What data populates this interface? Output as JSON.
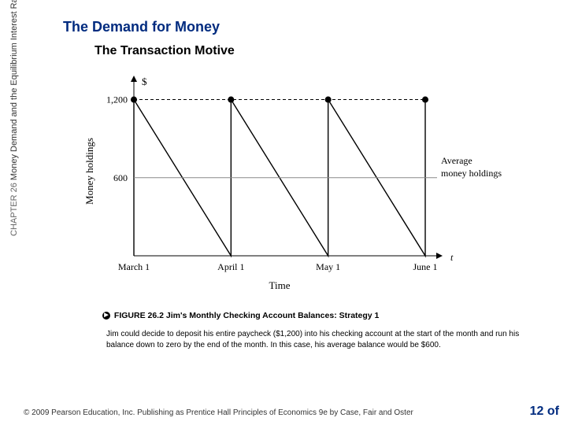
{
  "header": {
    "title": "The Demand for Money",
    "subtitle": "The Transaction Motive"
  },
  "sidebar": {
    "chapter_label": "CHAPTER 26",
    "chapter_title": "Money Demand and the Equilibrium Interest Rate"
  },
  "chart": {
    "type": "line",
    "y_axis_symbol": "$",
    "y_label": "Money holdings",
    "x_label": "Time",
    "x_symbol": "t",
    "y_ticks": [
      600,
      1200
    ],
    "y_tick_labels": [
      "600",
      "1,200"
    ],
    "x_ticks": [
      "March 1",
      "April 1",
      "May 1",
      "June 1"
    ],
    "ylim": [
      0,
      1300
    ],
    "peak_value": 1200,
    "trough_value": 0,
    "average_value": 600,
    "average_label": "Average\nmoney holdings",
    "line_color": "#000000",
    "line_width": 1.4,
    "marker_color": "#000000",
    "marker_style": "circle",
    "marker_radius": 4,
    "dashed_color": "#000000",
    "dashed_pattern": "4,3",
    "background_color": "#ffffff",
    "axis_color": "#000000",
    "axis_width": 1,
    "avg_line_color": "#888888",
    "avg_line_width": 1,
    "label_fontsize": 13,
    "tick_fontsize": 12,
    "font_family": "Georgia, 'Times New Roman', serif"
  },
  "figure": {
    "bullet_glyph": "▶",
    "number": "FIGURE 26.2",
    "title": "Jim's Monthly Checking Account Balances: Strategy 1",
    "body": "Jim could decide to deposit his entire paycheck ($1,200) into his checking account at the start of the month and run his balance down to zero by the end of the month. In this case, his average balance would be $600."
  },
  "footer": {
    "copyright": "© 2009 Pearson Education, Inc. Publishing as Prentice Hall   Principles of Economics 9e by Case, Fair and Oster",
    "page": "12 of"
  }
}
